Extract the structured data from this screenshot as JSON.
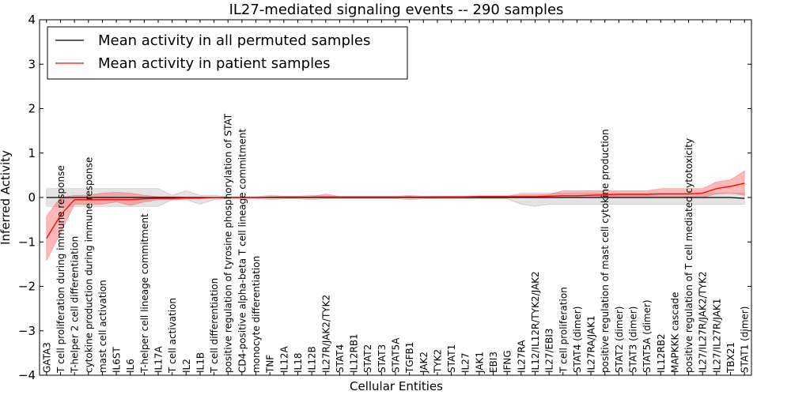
{
  "chart_data": {
    "type": "line",
    "title": "IL27-mediated signaling events -- 290 samples",
    "xlabel": "Cellular Entities",
    "ylabel": "Inferred Activity",
    "ylim": [
      -4,
      4
    ],
    "yticks": [
      4,
      3,
      2,
      1,
      0,
      -1,
      -2,
      -3,
      -4
    ],
    "ytick_labels": [
      "4",
      "3",
      "2",
      "1",
      "0",
      "−1",
      "−2",
      "−3",
      "−4"
    ],
    "legend": {
      "placement": "top-left",
      "entries": [
        {
          "label": "Mean activity in all permuted samples",
          "color": "#000000"
        },
        {
          "label": "Mean activity in patient samples",
          "color": "#ff0000"
        }
      ]
    },
    "categories": [
      "GATA3",
      "T cell proliferation during immune response",
      "T-helper 2 cell differentiation",
      "cytokine production during immune response",
      "mast cell activation",
      "IL6ST",
      "IL6",
      "T-helper cell lineage commitment",
      "IL17A",
      "T cell activation",
      "IL2",
      "IL1B",
      "T cell differentiation",
      "positive regulation of tyrosine phosphorylation of STAT",
      "CD4-positive alpha-beta T cell lineage commitment",
      "monocyte differentiation",
      "TNF",
      "IL12A",
      "IL18",
      "IL12B",
      "IL27R/JAK2/TYK2",
      "STAT4",
      "IL12RB1",
      "STAT2",
      "STAT3",
      "STAT5A",
      "TGFB1",
      "JAK2",
      "TYK2",
      "STAT1",
      "IL27",
      "JAK1",
      "EBI3",
      "IFNG",
      "IL27RA",
      "IL12/IL12R/TYK2/JAK2",
      "IL27/EBI3",
      "T cell proliferation",
      "STAT4 (dimer)",
      "IL27RA/JAK1",
      "positive regulation of mast cell cytokine production",
      "STAT2 (dimer)",
      "STAT3 (dimer)",
      "STAT5A (dimer)",
      "IL12RB2",
      "MAPKKK cascade",
      "positive regulation of T cell mediated cytotoxicity",
      "IL27/IL27R/JAK2/TYK2",
      "IL27/IL27R/JAK1",
      "TBX21",
      "STAT1 (dimer)"
    ],
    "series": [
      {
        "name": "Mean activity in all permuted samples",
        "color": "#000000",
        "values": [
          0,
          0,
          0,
          0,
          0,
          0,
          0,
          0,
          0,
          0,
          0,
          0,
          0,
          0,
          0,
          0,
          0,
          0,
          0,
          0,
          0,
          0,
          0,
          0,
          0,
          0,
          0,
          0,
          0,
          0,
          0,
          0,
          0,
          0,
          0,
          0,
          0,
          0,
          0,
          0,
          0,
          0,
          0,
          0,
          0,
          0,
          0,
          0,
          0,
          0,
          -0.02
        ],
        "lower": [
          -0.2,
          -0.2,
          -0.2,
          -0.2,
          -0.2,
          -0.2,
          -0.2,
          -0.2,
          -0.2,
          -0.05,
          -0.05,
          -0.15,
          -0.05,
          -0.02,
          -0.02,
          -0.02,
          -0.05,
          -0.03,
          -0.03,
          -0.05,
          -0.03,
          -0.03,
          -0.03,
          -0.03,
          -0.03,
          -0.03,
          -0.05,
          -0.03,
          -0.03,
          -0.03,
          -0.03,
          -0.03,
          -0.03,
          -0.03,
          -0.15,
          -0.2,
          -0.15,
          -0.15,
          -0.15,
          -0.15,
          -0.15,
          -0.15,
          -0.15,
          -0.15,
          -0.15,
          -0.15,
          -0.15,
          -0.15,
          -0.15,
          -0.15,
          -0.15
        ],
        "upper": [
          0.2,
          0.2,
          0.2,
          0.2,
          0.2,
          0.2,
          0.2,
          0.2,
          0.2,
          0.05,
          0.15,
          0.05,
          0.05,
          0.02,
          0.02,
          0.02,
          0.05,
          0.03,
          0.03,
          0.05,
          0.03,
          0.03,
          0.03,
          0.03,
          0.03,
          0.03,
          0.05,
          0.03,
          0.03,
          0.03,
          0.03,
          0.03,
          0.03,
          0.03,
          0.1,
          0.1,
          0.1,
          0.1,
          0.1,
          0.1,
          0.1,
          0.1,
          0.1,
          0.1,
          0.1,
          0.1,
          0.1,
          0.1,
          0.1,
          0.1,
          0.1
        ]
      },
      {
        "name": "Mean activity in patient samples",
        "color": "#ff0000",
        "values": [
          -0.92,
          -0.4,
          -0.05,
          -0.05,
          -0.05,
          -0.05,
          -0.05,
          -0.03,
          -0.02,
          -0.02,
          -0.01,
          -0.01,
          0,
          0,
          0,
          0,
          0.01,
          0.01,
          0.01,
          0.01,
          0.01,
          0.01,
          0.01,
          0.01,
          0.01,
          0.01,
          0.01,
          0.01,
          0.01,
          0.01,
          0.01,
          0.02,
          0.02,
          0.02,
          0.02,
          0.02,
          0.03,
          0.04,
          0.04,
          0.05,
          0.06,
          0.07,
          0.07,
          0.07,
          0.08,
          0.08,
          0.08,
          0.1,
          0.2,
          0.25,
          0.32
        ],
        "lower": [
          -1.42,
          -0.8,
          -0.15,
          -0.15,
          -0.15,
          -0.1,
          -0.18,
          -0.1,
          -0.05,
          -0.05,
          -0.03,
          -0.03,
          -0.01,
          -0.01,
          -0.01,
          -0.01,
          -0.01,
          -0.01,
          -0.01,
          -0.01,
          -0.01,
          -0.01,
          -0.01,
          -0.01,
          -0.01,
          -0.01,
          -0.01,
          -0.01,
          -0.01,
          -0.01,
          -0.01,
          0,
          0,
          0,
          0,
          0,
          0,
          0,
          0,
          0,
          0,
          0,
          0,
          0,
          0,
          0,
          0,
          0,
          0.08,
          0.1,
          0.05
        ],
        "upper": [
          -0.42,
          0,
          0.05,
          0.05,
          0.1,
          0.12,
          0.1,
          0.05,
          0.02,
          0.02,
          0.01,
          0.01,
          0.01,
          0.01,
          0.01,
          0.01,
          0.02,
          0.02,
          0.02,
          0.02,
          0.08,
          0.02,
          0.02,
          0.02,
          0.02,
          0.02,
          0.03,
          0.02,
          0.03,
          0.03,
          0.03,
          0.04,
          0.04,
          0.04,
          0.06,
          0.06,
          0.07,
          0.15,
          0.15,
          0.15,
          0.15,
          0.15,
          0.15,
          0.15,
          0.2,
          0.2,
          0.2,
          0.2,
          0.35,
          0.4,
          0.6
        ]
      }
    ]
  }
}
